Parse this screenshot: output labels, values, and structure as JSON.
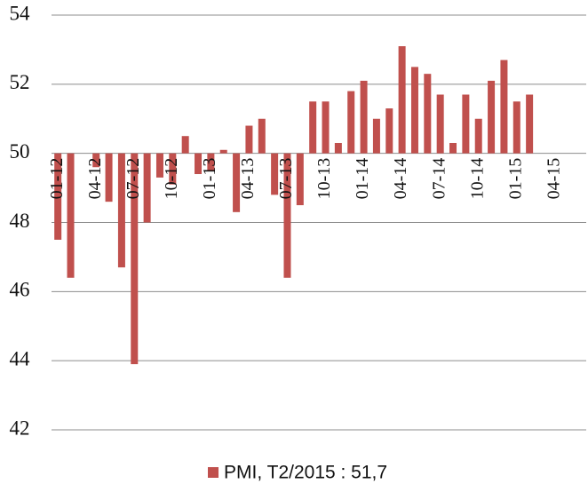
{
  "chart_data": {
    "type": "bar",
    "categories": [
      "01-12",
      null,
      null,
      "04-12",
      null,
      null,
      "07-12",
      null,
      null,
      "10-12",
      null,
      null,
      "01-13",
      null,
      null,
      "04-13",
      null,
      null,
      "07-13",
      null,
      null,
      "10-13",
      null,
      null,
      "01-14",
      null,
      null,
      "04-14",
      null,
      null,
      "07-14",
      null,
      null,
      "10-14",
      null,
      null,
      "01-15",
      null,
      null,
      "04-15"
    ],
    "series": [
      {
        "name": "PMI, T2/2015 : 51,7",
        "color": "#c0504d",
        "values": [
          47.5,
          46.4,
          50.0,
          49.6,
          48.6,
          46.7,
          43.9,
          48.0,
          49.3,
          49.1,
          50.5,
          49.4,
          49.5,
          50.1,
          48.3,
          50.8,
          51.0,
          48.8,
          46.4,
          48.5,
          51.5,
          51.5,
          50.3,
          51.8,
          52.1,
          51.0,
          51.3,
          53.1,
          52.5,
          52.3,
          51.7,
          50.3,
          51.7,
          51.0,
          52.1,
          52.7,
          51.5,
          51.7,
          null,
          null
        ]
      }
    ],
    "ylim": [
      42,
      54
    ],
    "yticks": [
      42,
      44,
      46,
      48,
      50,
      52,
      54
    ],
    "baseline": 50,
    "grid": true,
    "legend": "bottom"
  }
}
